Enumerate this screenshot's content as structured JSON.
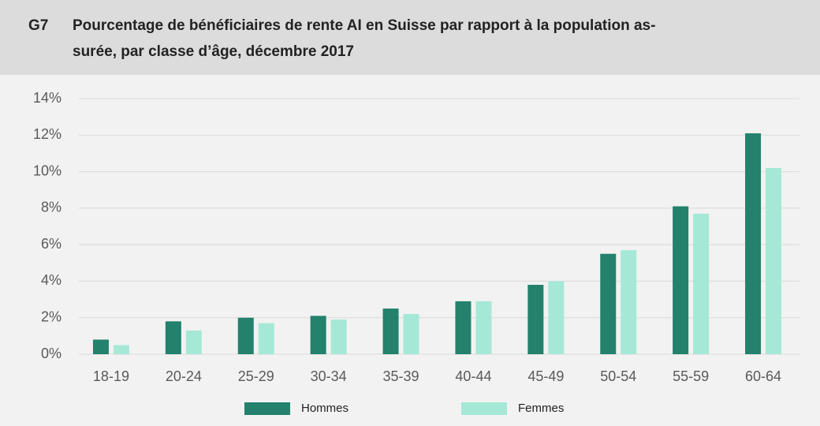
{
  "chart_data": {
    "type": "bar",
    "label": "G7",
    "title": [
      "Pourcentage de bénéficiaires de rente AI en Suisse par rapport à la population as-",
      "surée, par classe d’âge, décembre 2017"
    ],
    "categories": [
      "18-19",
      "20-24",
      "25-29",
      "30-34",
      "35-39",
      "40-44",
      "45-49",
      "50-54",
      "55-59",
      "60-64"
    ],
    "series": [
      {
        "name": "Hommes",
        "color": "#23816c",
        "values": [
          0.8,
          1.8,
          2.0,
          2.1,
          2.5,
          2.9,
          3.8,
          5.5,
          8.1,
          12.1
        ]
      },
      {
        "name": "Femmes",
        "color": "#a6e8d6",
        "values": [
          0.5,
          1.3,
          1.7,
          1.9,
          2.2,
          2.9,
          4.0,
          5.7,
          7.7,
          10.2
        ]
      }
    ],
    "ylim": [
      0,
      14
    ],
    "yticks": [
      {
        "value": 0,
        "label": "0%"
      },
      {
        "value": 2,
        "label": "2%"
      },
      {
        "value": 4,
        "label": "4%"
      },
      {
        "value": 6,
        "label": "6%"
      },
      {
        "value": 8,
        "label": "8%"
      },
      {
        "value": 10,
        "label": "10%"
      },
      {
        "value": 12,
        "label": "12%"
      },
      {
        "value": 14,
        "label": "14%"
      }
    ],
    "grid": true,
    "legend": "bottom"
  }
}
